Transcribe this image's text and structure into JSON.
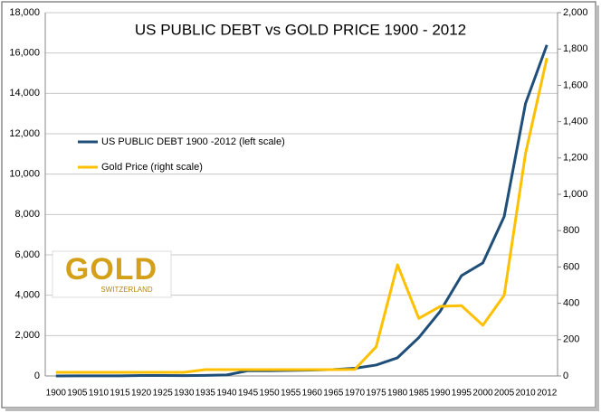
{
  "chart_data": {
    "type": "line",
    "title": "US PUBLIC DEBT vs GOLD PRICE 1900 - 2012",
    "categories": [
      "1900",
      "1905",
      "1910",
      "1915",
      "1920",
      "1925",
      "1930",
      "1935",
      "1940",
      "1945",
      "1950",
      "1955",
      "1960",
      "1965",
      "1970",
      "1975",
      "1980",
      "1985",
      "1990",
      "1995",
      "2000",
      "2005",
      "2010",
      "2012"
    ],
    "series": [
      {
        "name": "US PUBLIC DEBT 1900 -2012 (left scale)",
        "color": "#1f4e79",
        "values": [
          2,
          3,
          3,
          3,
          24,
          20,
          16,
          28,
          50,
          260,
          257,
          274,
          290,
          320,
          380,
          540,
          900,
          1900,
          3200,
          4970,
          5600,
          7900,
          13500,
          16400
        ]
      },
      {
        "name": "Gold Price (right scale)",
        "color": "#ffc000",
        "axis": "y2",
        "values": [
          20,
          20,
          20,
          20,
          20,
          20,
          20,
          35,
          35,
          35,
          35,
          35,
          35,
          35,
          36,
          160,
          612,
          317,
          383,
          387,
          279,
          444,
          1225,
          1750
        ]
      }
    ],
    "ylim": [
      0,
      18000
    ],
    "yticks": [
      0,
      {
        "value": 2000,
        "label": "2,000"
      },
      {
        "value": 4000,
        "label": "4,000"
      },
      {
        "value": 6000,
        "label": "6,000"
      },
      {
        "value": 8000,
        "label": "8,000"
      },
      {
        "value": 10000,
        "label": "10,000"
      },
      {
        "value": 12000,
        "label": "12,000"
      },
      {
        "value": 14000,
        "label": "14,000"
      },
      {
        "value": 16000,
        "label": "16,000"
      },
      {
        "value": 18000,
        "label": "18,000"
      }
    ],
    "y2lim": [
      0,
      2000
    ],
    "y2ticks": [
      0,
      200,
      400,
      600,
      800,
      {
        "value": 1000,
        "label": "1,000"
      },
      {
        "value": 1200,
        "label": "1,200"
      },
      {
        "value": 1400,
        "label": "1,400"
      },
      {
        "value": 1600,
        "label": "1,600"
      },
      {
        "value": 1800,
        "label": "1,800"
      },
      {
        "value": 2000,
        "label": "2,000"
      }
    ],
    "grid": true,
    "logo": {
      "text": "GOLD",
      "subtext": "SWITZERLAND"
    }
  }
}
